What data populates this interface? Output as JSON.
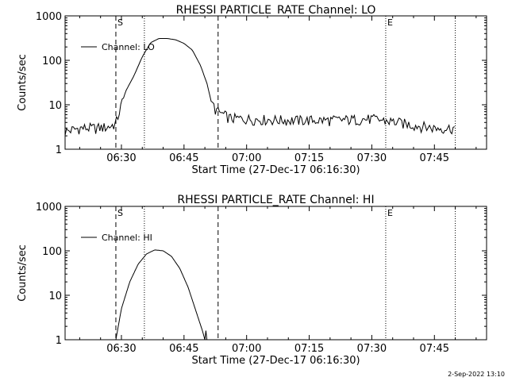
{
  "chart_data": [
    {
      "type": "line",
      "title": "RHESSI PARTICLE_RATE Channel: LO",
      "xlabel": "Start Time (27-Dec-17 06:16:30)",
      "ylabel": "Counts/sec",
      "yscale": "log",
      "xlim": [
        "06:16:30",
        "07:57:30"
      ],
      "ylim": [
        1,
        1000
      ],
      "ytick_labels": [
        "1",
        "10",
        "100",
        "1000"
      ],
      "xtick_labels": [
        "06:30",
        "06:45",
        "07:00",
        "07:15",
        "07:30",
        "07:45"
      ],
      "legend": "top-left",
      "markers": [
        {
          "label": "S",
          "time": "06:28:40",
          "style": "dashed"
        },
        {
          "time": "06:35:30",
          "style": "dotted"
        },
        {
          "time": "06:53:10",
          "style": "dashed"
        },
        {
          "label": "E",
          "time": "07:33:20",
          "style": "dotted"
        },
        {
          "time": "07:50:00",
          "style": "dotted"
        }
      ],
      "series": [
        {
          "name": "Channel: LO",
          "x": [
            "06:16:30",
            "06:20:00",
            "06:24:00",
            "06:27:00",
            "06:28:40",
            "06:30:00",
            "06:31:00",
            "06:33:00",
            "06:35:00",
            "06:37:00",
            "06:39:00",
            "06:41:00",
            "06:43:00",
            "06:45:00",
            "06:47:00",
            "06:49:00",
            "06:50:30",
            "06:51:30",
            "06:52:30",
            "06:53:10",
            "06:56:00",
            "07:00:00",
            "07:10:00",
            "07:20:00",
            "07:30:00",
            "07:35:00",
            "07:40:00",
            "07:45:00",
            "07:50:00"
          ],
          "values": [
            2.5,
            3.0,
            3.0,
            3.2,
            3.8,
            10,
            20,
            45,
            120,
            250,
            310,
            310,
            290,
            240,
            170,
            75,
            30,
            12,
            8,
            7,
            5,
            4.8,
            4.5,
            4.5,
            4.8,
            4.2,
            3.5,
            3.0,
            3.0
          ]
        }
      ]
    },
    {
      "type": "line",
      "title": "RHESSI PARTICLE_RATE Channel: HI",
      "xlabel": "Start Time (27-Dec-17 06:16:30)",
      "ylabel": "Counts/sec",
      "yscale": "log",
      "xlim": [
        "06:16:30",
        "07:57:30"
      ],
      "ylim": [
        1,
        1000
      ],
      "ytick_labels": [
        "1",
        "10",
        "100",
        "1000"
      ],
      "xtick_labels": [
        "06:30",
        "06:45",
        "07:00",
        "07:15",
        "07:30",
        "07:45"
      ],
      "legend": "top-left",
      "markers": [
        {
          "label": "S",
          "time": "06:28:40",
          "style": "dashed"
        },
        {
          "time": "06:35:30",
          "style": "dotted"
        },
        {
          "time": "06:53:10",
          "style": "dashed"
        },
        {
          "label": "E",
          "time": "07:33:20",
          "style": "dotted"
        },
        {
          "time": "07:50:00",
          "style": "dotted"
        }
      ],
      "series": [
        {
          "name": "Channel: HI",
          "x": [
            "06:28:40",
            "06:30:00",
            "06:32:00",
            "06:34:00",
            "06:36:00",
            "06:38:00",
            "06:40:00",
            "06:42:00",
            "06:44:00",
            "06:46:00",
            "06:48:00",
            "06:49:30"
          ],
          "values": [
            1,
            5,
            20,
            50,
            85,
            105,
            100,
            75,
            40,
            15,
            4,
            1.5
          ]
        }
      ]
    }
  ],
  "footer": {
    "timestamp": "2-Sep-2022 13:10"
  }
}
